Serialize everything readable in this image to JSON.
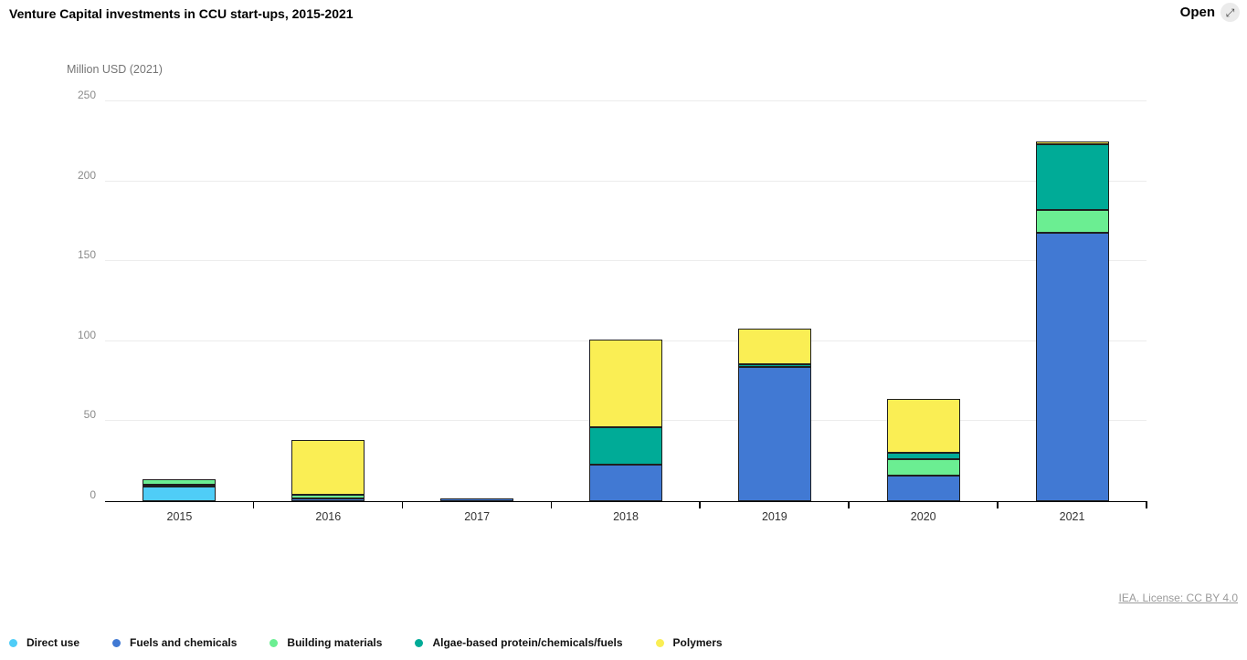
{
  "header": {
    "title": "Venture Capital investments in CCU start-ups, 2015-2021",
    "open_label": "Open",
    "open_icon_glyph": "⤢"
  },
  "chart_data": {
    "type": "bar",
    "stacked": true,
    "title": "Venture Capital investments in CCU start-ups, 2015-2021",
    "ylabel": "Million USD (2021)",
    "xlabel": "",
    "ylim": [
      0,
      250
    ],
    "yticks": [
      0,
      50,
      100,
      150,
      200,
      250
    ],
    "grid": true,
    "legend_position": "bottom",
    "categories": [
      "2015",
      "2016",
      "2017",
      "2018",
      "2019",
      "2020",
      "2021"
    ],
    "series": [
      {
        "name": "Direct use",
        "color": "#4FCDF7",
        "values": [
          9,
          0,
          0,
          0,
          0,
          0,
          0
        ]
      },
      {
        "name": "Fuels and chemicals",
        "color": "#4179D3",
        "values": [
          1.5,
          2,
          1.5,
          23,
          84,
          16,
          168
        ]
      },
      {
        "name": "Building materials",
        "color": "#6BEE92",
        "values": [
          3,
          2,
          0,
          0,
          0,
          10,
          14
        ]
      },
      {
        "name": "Algae-based protein/chemicals/fuels",
        "color": "#00AB97",
        "values": [
          0,
          0,
          0,
          23,
          1.5,
          4.5,
          41
        ]
      },
      {
        "name": "Polymers",
        "color": "#FAEE54",
        "values": [
          0,
          34,
          0,
          55,
          22.5,
          33.5,
          2
        ]
      }
    ]
  },
  "footer": {
    "license": "IEA. License: CC BY 4.0"
  }
}
